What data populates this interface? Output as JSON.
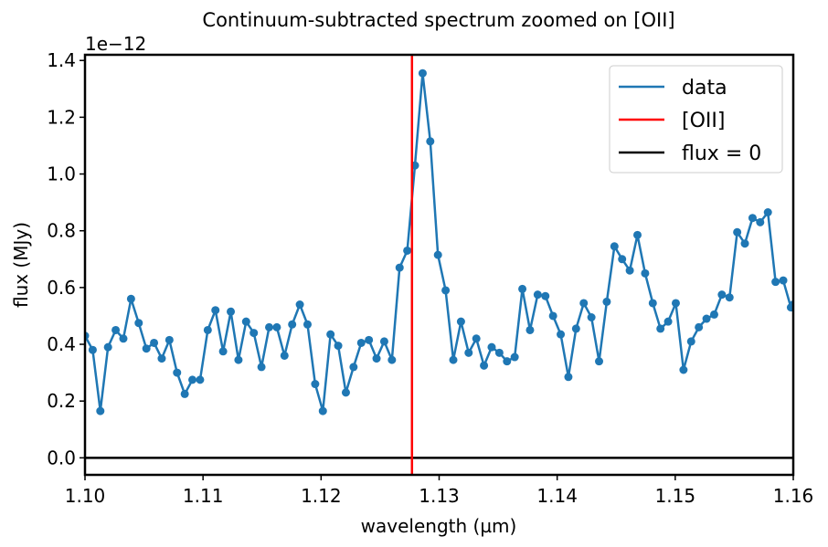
{
  "chart_data": {
    "type": "line",
    "title": "Continuum-subtracted spectrum zoomed on [OII]",
    "xlabel": "wavelength (µm)",
    "ylabel": "flux (MJy)",
    "y_offset_label": "1e−12",
    "xlim": [
      1.1,
      1.16
    ],
    "ylim": [
      -0.06,
      1.42
    ],
    "xticks": [
      1.1,
      1.11,
      1.12,
      1.13,
      1.14,
      1.15,
      1.16
    ],
    "xtick_labels": [
      "1.10",
      "1.11",
      "1.12",
      "1.13",
      "1.14",
      "1.15",
      "1.16"
    ],
    "yticks": [
      0.0,
      0.2,
      0.4,
      0.6,
      0.8,
      1.0,
      1.2,
      1.4
    ],
    "ytick_labels": [
      "0.0",
      "0.2",
      "0.4",
      "0.6",
      "0.8",
      "1.0",
      "1.2",
      "1.4"
    ],
    "legend_position": "top-right",
    "colors": {
      "data": "#1f77b4",
      "oii": "#ff0000",
      "zero": "#000000"
    },
    "series": [
      {
        "name": "data",
        "x": [
          1.1,
          1.10065,
          1.1013,
          1.10195,
          1.1026,
          1.10325,
          1.1039,
          1.10455,
          1.1052,
          1.10585,
          1.1065,
          1.10715,
          1.1078,
          1.10845,
          1.1091,
          1.10975,
          1.1104,
          1.11105,
          1.1117,
          1.11235,
          1.113,
          1.11365,
          1.1143,
          1.11495,
          1.1156,
          1.11625,
          1.1169,
          1.11755,
          1.1182,
          1.11885,
          1.1195,
          1.12015,
          1.1208,
          1.12145,
          1.1221,
          1.12275,
          1.1234,
          1.12405,
          1.1247,
          1.12535,
          1.126,
          1.12665,
          1.1273,
          1.12795,
          1.1286,
          1.12925,
          1.1299,
          1.13055,
          1.1312,
          1.13185,
          1.1325,
          1.13315,
          1.1338,
          1.13445,
          1.1351,
          1.13575,
          1.1364,
          1.13705,
          1.1377,
          1.13835,
          1.139,
          1.13965,
          1.1403,
          1.14095,
          1.1416,
          1.14225,
          1.1429,
          1.14355,
          1.1442,
          1.14485,
          1.1455,
          1.14615,
          1.1468,
          1.14745,
          1.1481,
          1.14875,
          1.1494,
          1.15005,
          1.1507,
          1.15135,
          1.152,
          1.15265,
          1.1533,
          1.15395,
          1.1546,
          1.15525,
          1.1559,
          1.15655,
          1.1572,
          1.15785,
          1.1585,
          1.15915,
          1.1598,
          1.16
        ],
        "values": [
          0.43,
          0.38,
          0.165,
          0.39,
          0.45,
          0.42,
          0.56,
          0.475,
          0.385,
          0.405,
          0.35,
          0.415,
          0.3,
          0.225,
          0.275,
          0.275,
          0.45,
          0.52,
          0.375,
          0.515,
          0.345,
          0.48,
          0.44,
          0.32,
          0.46,
          0.46,
          0.36,
          0.47,
          0.54,
          0.47,
          0.26,
          0.165,
          0.435,
          0.395,
          0.23,
          0.32,
          0.405,
          0.415,
          0.35,
          0.41,
          0.345,
          0.67,
          0.73,
          1.03,
          1.355,
          1.115,
          0.715,
          0.59,
          0.345,
          0.48,
          0.37,
          0.42,
          0.325,
          0.39,
          0.37,
          0.34,
          0.355,
          0.595,
          0.45,
          0.575,
          0.57,
          0.5,
          0.435,
          0.285,
          0.455,
          0.545,
          0.495,
          0.34,
          0.55,
          0.745,
          0.7,
          0.66,
          0.785,
          0.65,
          0.545,
          0.455,
          0.48,
          0.545,
          0.31,
          0.41,
          0.46,
          0.49,
          0.505,
          0.575,
          0.565,
          0.795,
          0.755,
          0.845,
          0.83,
          0.865,
          0.62,
          0.625,
          0.53,
          0.54
        ]
      }
    ],
    "vlines": [
      {
        "name": "[OII]",
        "x": 1.1277
      }
    ],
    "hlines": [
      {
        "name": "flux = 0",
        "y": 0.0
      }
    ]
  },
  "legend": {
    "items": [
      {
        "label": "data"
      },
      {
        "label": "[OII]"
      },
      {
        "label": "flux = 0"
      }
    ]
  }
}
